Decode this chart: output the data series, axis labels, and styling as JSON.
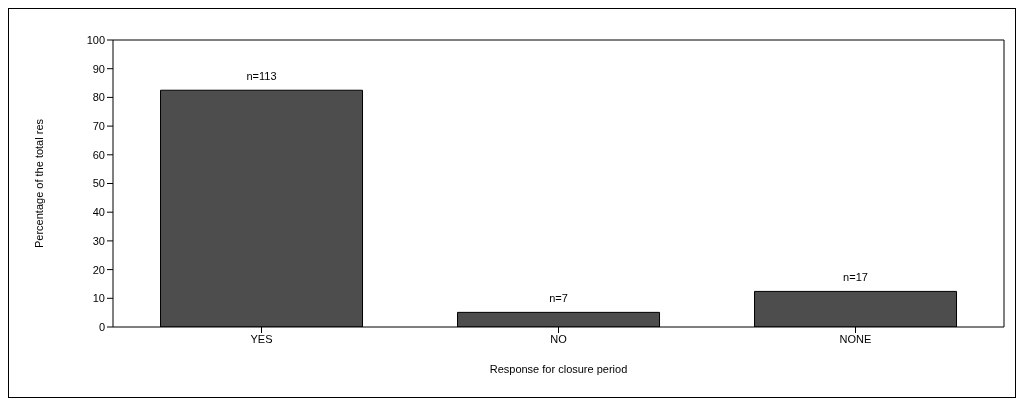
{
  "chart_data": {
    "type": "bar",
    "xlabel": "Response for closure period",
    "ylabel": "Percentage of the total res",
    "categories": [
      "YES",
      "NO",
      "NONE"
    ],
    "values": [
      82.5,
      5.1,
      12.4
    ],
    "annotations": [
      {
        "text": "n=113",
        "x": "YES",
        "y": 82.5
      },
      {
        "text": "n=7",
        "x": "NO",
        "y": 5.1
      },
      {
        "text": "n=17",
        "x": "NONE",
        "y": 12.4
      }
    ],
    "color": "#4d4d4d",
    "ylim": [
      0,
      100
    ],
    "yticks": [
      0,
      10,
      20,
      30,
      40,
      50,
      60,
      70,
      80,
      90,
      100
    ]
  }
}
